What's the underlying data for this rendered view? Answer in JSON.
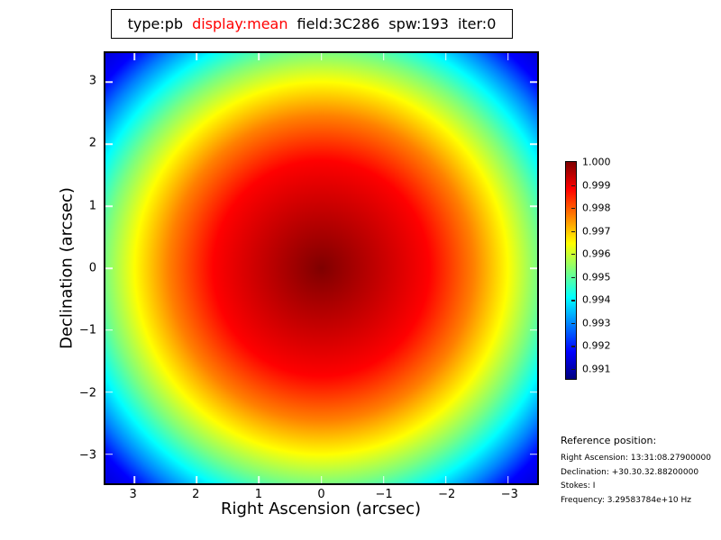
{
  "title": {
    "segments": [
      {
        "text": "type:pb",
        "color": "#000000"
      },
      {
        "text": "display:mean",
        "color": "#ff0000"
      },
      {
        "text": "field:3C286",
        "color": "#000000"
      },
      {
        "text": "spw:193",
        "color": "#000000"
      },
      {
        "text": "iter:0",
        "color": "#000000"
      }
    ]
  },
  "axes": {
    "xlabel": "Right Ascension (arcsec)",
    "ylabel": "Declination (arcsec)",
    "x_ticks": [
      "3",
      "2",
      "1",
      "0",
      "−1",
      "−2",
      "−3"
    ],
    "y_ticks": [
      "3",
      "2",
      "1",
      "0",
      "−1",
      "−2",
      "−3"
    ]
  },
  "colorbar": {
    "labels": [
      "1.000",
      "0.999",
      "0.998",
      "0.997",
      "0.996",
      "0.995",
      "0.994",
      "0.993",
      "0.992",
      "0.991"
    ],
    "colormap": "jet"
  },
  "reference": {
    "heading": "Reference position:",
    "lines": [
      "Right Ascension: 13:31:08.27900000",
      "Declination: +30.30.32.88200000",
      "Stokes: I",
      "Frequency: 3.29583784e+10 Hz"
    ]
  },
  "chart_data": {
    "type": "heatmap",
    "title": "type:pb  display:mean  field:3C286  spw:193  iter:0",
    "xlabel": "Right Ascension (arcsec)",
    "ylabel": "Declination (arcsec)",
    "x_range_arcsec": [
      3.47,
      -3.47
    ],
    "y_range_arcsec": [
      -3.47,
      3.47
    ],
    "x_ticks": [
      3,
      2,
      1,
      0,
      -1,
      -2,
      -3
    ],
    "y_ticks": [
      3,
      2,
      1,
      0,
      -1,
      -2,
      -3
    ],
    "colormap": "jet",
    "value_range": [
      0.9905,
      1.0
    ],
    "colorbar_ticks": [
      1.0,
      0.999,
      0.998,
      0.997,
      0.996,
      0.995,
      0.994,
      0.993,
      0.992,
      0.991
    ],
    "peak": {
      "x_arcsec": 0,
      "y_arcsec": 0,
      "value": 1.0
    },
    "radial_profile": {
      "radius_arcsec": [
        0,
        0.5,
        1.0,
        1.5,
        2.0,
        2.5,
        3.0,
        3.5,
        4.0,
        4.5,
        4.9
      ],
      "value": [
        1.0,
        0.9999,
        0.9996,
        0.9992,
        0.9985,
        0.9977,
        0.9966,
        0.9954,
        0.994,
        0.9924,
        0.991
      ]
    },
    "description": "Radially symmetric primary-beam (pb) mean response centered at (0,0): dark red peak of 1.000 at center falling off to ~0.991 (dark blue) at the field corners, rendered with a jet colormap."
  }
}
